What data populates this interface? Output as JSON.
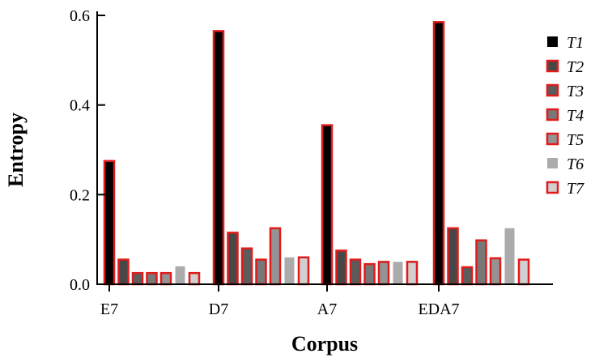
{
  "chart_data": {
    "type": "bar",
    "xlabel": "Corpus",
    "ylabel": "Entropy",
    "ylim": [
      0,
      0.6
    ],
    "yticks": [
      "0.0",
      "0.2",
      "0.4",
      "0.6"
    ],
    "categories": [
      "E7",
      "D7",
      "A7",
      "EDA7"
    ],
    "legend_position": "right",
    "series": [
      {
        "name": "T1",
        "fill": "#000000",
        "outlined": true,
        "values": [
          0.275,
          0.565,
          0.355,
          0.585
        ]
      },
      {
        "name": "T2",
        "fill": "#474747",
        "outlined": true,
        "values": [
          0.055,
          0.115,
          0.075,
          0.125
        ]
      },
      {
        "name": "T3",
        "fill": "#5c5c5c",
        "outlined": true,
        "values": [
          0.025,
          0.08,
          0.055,
          0.038
        ]
      },
      {
        "name": "T4",
        "fill": "#787878",
        "outlined": true,
        "values": [
          0.025,
          0.055,
          0.045,
          0.098
        ]
      },
      {
        "name": "T5",
        "fill": "#949494",
        "outlined": true,
        "values": [
          0.025,
          0.125,
          0.05,
          0.058
        ]
      },
      {
        "name": "T6",
        "fill": "#ababab",
        "outlined": false,
        "values": [
          0.04,
          0.06,
          0.05,
          0.125
        ]
      },
      {
        "name": "T7",
        "fill": "#d0d0d0",
        "outlined": true,
        "values": [
          0.025,
          0.06,
          0.05,
          0.055
        ]
      }
    ],
    "accent_color": "#e01b1b"
  }
}
